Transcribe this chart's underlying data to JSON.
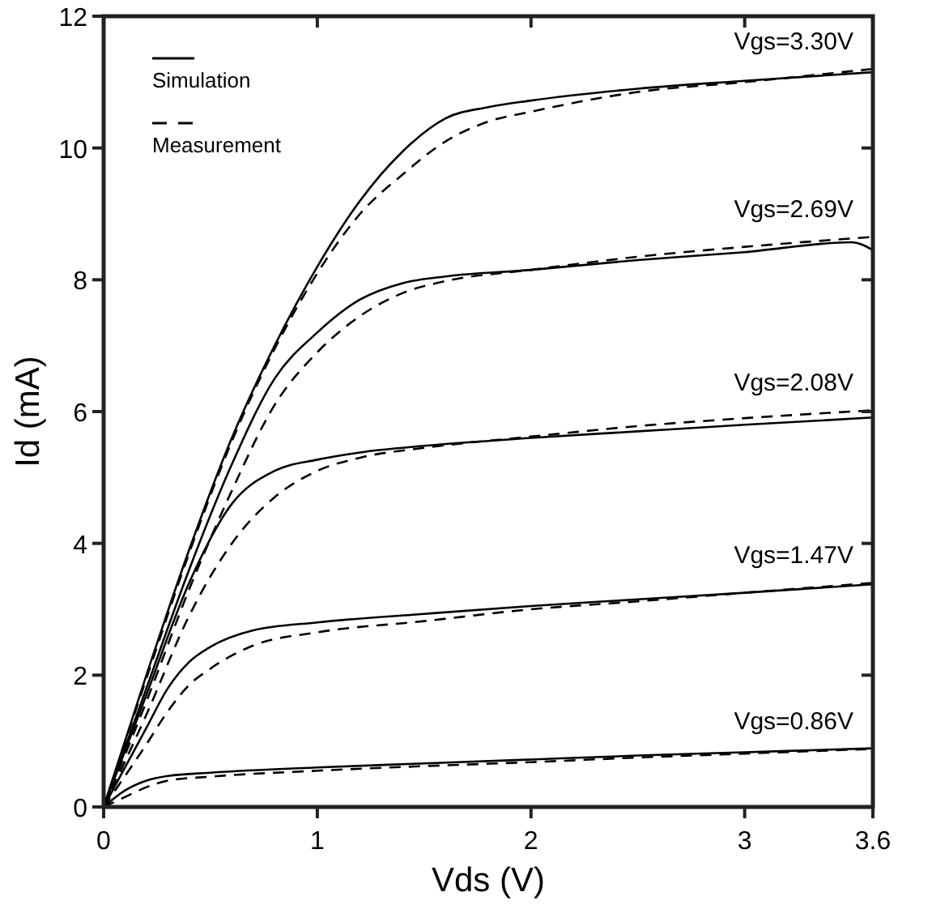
{
  "chart_data": {
    "type": "line",
    "xlabel": "Vds (V)",
    "ylabel": "Id (mA)",
    "xlim": [
      0,
      3.6
    ],
    "ylim": [
      0,
      12
    ],
    "xticks": [
      0,
      1,
      2,
      3,
      3.6
    ],
    "yticks": [
      0,
      2,
      4,
      6,
      8,
      10,
      12
    ],
    "grid": false,
    "legend": "top left",
    "marker": "none",
    "series": [
      {
        "name": "Simulation",
        "color": "#000000",
        "line_style": "solid",
        "x": [
          0,
          0.2,
          0.4,
          0.6,
          0.8,
          1.0,
          1.2,
          1.4,
          1.6,
          1.8,
          2.0,
          2.5,
          3.0,
          3.6
        ],
        "values": [
          0,
          2.0,
          3.9,
          5.6,
          7.0,
          8.2,
          9.2,
          9.95,
          10.45,
          10.62,
          10.72,
          10.9,
          11.02,
          11.15
        ]
      },
      {
        "name": "Measurement",
        "color": "#000000",
        "line_style": "dashed",
        "x": [
          0,
          0.2,
          0.4,
          0.6,
          0.8,
          1.0,
          1.2,
          1.4,
          1.6,
          1.8,
          2.0,
          2.5,
          3.0,
          3.6
        ],
        "values": [
          0,
          1.95,
          3.85,
          5.55,
          6.95,
          8.1,
          9.0,
          9.6,
          10.1,
          10.4,
          10.55,
          10.85,
          11.0,
          11.2
        ]
      },
      {
        "color": "#000000",
        "line_style": "solid",
        "x": [
          0,
          0.2,
          0.4,
          0.6,
          0.8,
          1.0,
          1.2,
          1.4,
          1.6,
          2.0,
          2.5,
          3.0,
          3.5,
          3.6
        ],
        "values": [
          0,
          1.8,
          3.6,
          5.2,
          6.5,
          7.2,
          7.7,
          7.95,
          8.05,
          8.15,
          8.3,
          8.42,
          8.57,
          8.45
        ]
      },
      {
        "color": "#000000",
        "line_style": "dashed",
        "x": [
          0,
          0.2,
          0.4,
          0.6,
          0.8,
          1.0,
          1.2,
          1.4,
          1.6,
          2.0,
          2.5,
          3.0,
          3.6
        ],
        "values": [
          0,
          1.6,
          3.3,
          4.8,
          6.1,
          6.9,
          7.45,
          7.8,
          7.98,
          8.15,
          8.35,
          8.5,
          8.65
        ]
      },
      {
        "color": "#000000",
        "line_style": "solid",
        "x": [
          0,
          0.2,
          0.4,
          0.6,
          0.8,
          1.0,
          1.2,
          1.5,
          2.0,
          2.5,
          3.0,
          3.6
        ],
        "values": [
          0,
          1.7,
          3.4,
          4.6,
          5.1,
          5.27,
          5.38,
          5.48,
          5.6,
          5.7,
          5.8,
          5.91
        ]
      },
      {
        "color": "#000000",
        "line_style": "dashed",
        "x": [
          0,
          0.2,
          0.4,
          0.6,
          0.8,
          1.0,
          1.2,
          1.5,
          2.0,
          2.5,
          3.0,
          3.6
        ],
        "values": [
          0,
          1.4,
          2.9,
          4.0,
          4.7,
          5.1,
          5.3,
          5.45,
          5.62,
          5.78,
          5.9,
          6.02
        ]
      },
      {
        "color": "#000000",
        "line_style": "solid",
        "x": [
          0,
          0.1,
          0.2,
          0.3,
          0.4,
          0.5,
          0.7,
          1.0,
          1.5,
          2.0,
          2.5,
          3.0,
          3.6
        ],
        "values": [
          0,
          0.6,
          1.2,
          1.8,
          2.2,
          2.43,
          2.68,
          2.8,
          2.93,
          3.05,
          3.15,
          3.25,
          3.38
        ]
      },
      {
        "color": "#000000",
        "line_style": "dashed",
        "x": [
          0,
          0.2,
          0.3,
          0.4,
          0.5,
          0.7,
          1.0,
          1.5,
          2.0,
          2.5,
          3.0,
          3.6
        ],
        "values": [
          0,
          0.95,
          1.45,
          1.85,
          2.1,
          2.45,
          2.65,
          2.82,
          3.0,
          3.12,
          3.25,
          3.4
        ]
      },
      {
        "color": "#000000",
        "line_style": "solid",
        "x": [
          0,
          0.1,
          0.2,
          0.3,
          0.5,
          1.0,
          1.5,
          2.0,
          2.5,
          3.0,
          3.6
        ],
        "values": [
          0,
          0.25,
          0.4,
          0.47,
          0.52,
          0.6,
          0.66,
          0.72,
          0.78,
          0.83,
          0.89
        ]
      },
      {
        "color": "#000000",
        "line_style": "dashed",
        "x": [
          0,
          0.1,
          0.2,
          0.3,
          0.5,
          1.0,
          1.5,
          2.0,
          2.5,
          3.0,
          3.6
        ],
        "values": [
          0,
          0.15,
          0.3,
          0.4,
          0.46,
          0.55,
          0.62,
          0.68,
          0.75,
          0.81,
          0.88
        ]
      }
    ],
    "annotations": [
      "Vgs=3.30V",
      "Vgs=2.69V",
      "Vgs=2.08V",
      "Vgs=1.47V",
      "Vgs=0.86V"
    ]
  }
}
